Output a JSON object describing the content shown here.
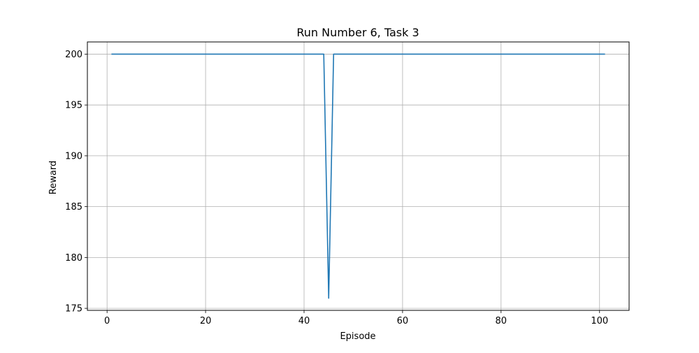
{
  "chart_data": {
    "type": "line",
    "title": "Run Number 6, Task 3",
    "xlabel": "Episode",
    "ylabel": "Reward",
    "xlim": [
      -4,
      106
    ],
    "ylim": [
      174.8,
      201.2
    ],
    "xticks": [
      0,
      20,
      40,
      60,
      80,
      100
    ],
    "yticks": [
      175,
      180,
      185,
      190,
      195,
      200
    ],
    "xtick_labels": [
      "0",
      "20",
      "40",
      "60",
      "80",
      "100"
    ],
    "ytick_labels": [
      "175",
      "180",
      "185",
      "190",
      "195",
      "200"
    ],
    "grid": true,
    "series": [
      {
        "color": "#1f77b4",
        "x": [
          1,
          44,
          45,
          46,
          101
        ],
        "y": [
          200,
          200,
          176,
          200,
          200
        ]
      }
    ]
  }
}
